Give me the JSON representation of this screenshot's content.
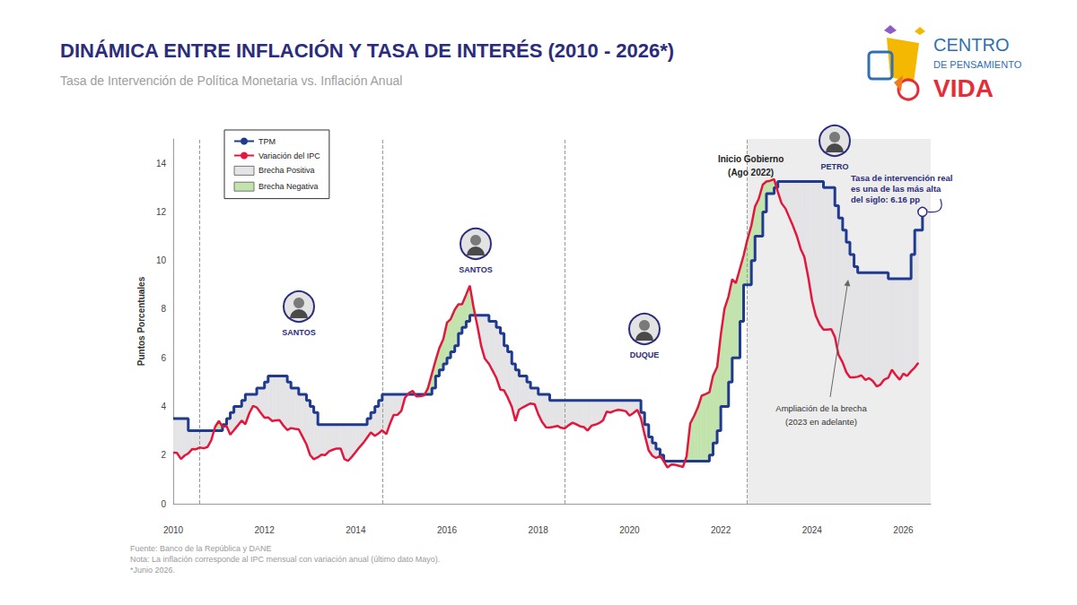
{
  "chart_data": {
    "type": "line",
    "title": "DINÁMICA ENTRE INFLACIÓN Y TASA DE INTERÉS (2010 - 2026*)",
    "subtitle": "Tasa de Intervención de Política Monetaria vs. Inflación Anual",
    "y_label": "Puntos Porcentuales",
    "x": [
      2010,
      2010.08,
      2010.17,
      2010.25,
      2010.33,
      2010.42,
      2010.5,
      2010.58,
      2010.67,
      2010.75,
      2010.83,
      2010.92,
      2011,
      2011.08,
      2011.17,
      2011.25,
      2011.33,
      2011.42,
      2011.5,
      2011.58,
      2011.67,
      2011.75,
      2011.83,
      2011.92,
      2012,
      2012.08,
      2012.17,
      2012.25,
      2012.33,
      2012.42,
      2012.5,
      2012.58,
      2012.67,
      2012.75,
      2012.83,
      2012.92,
      2013,
      2013.08,
      2013.17,
      2013.25,
      2013.33,
      2013.42,
      2013.5,
      2013.58,
      2013.67,
      2013.75,
      2013.83,
      2013.92,
      2014,
      2014.08,
      2014.17,
      2014.25,
      2014.33,
      2014.42,
      2014.5,
      2014.58,
      2014.67,
      2014.75,
      2014.83,
      2014.92,
      2015,
      2015.08,
      2015.17,
      2015.25,
      2015.33,
      2015.42,
      2015.5,
      2015.58,
      2015.67,
      2015.75,
      2015.83,
      2015.92,
      2016,
      2016.08,
      2016.17,
      2016.25,
      2016.33,
      2016.42,
      2016.5,
      2016.58,
      2016.67,
      2016.75,
      2016.83,
      2016.92,
      2017,
      2017.08,
      2017.17,
      2017.25,
      2017.33,
      2017.42,
      2017.5,
      2017.58,
      2017.67,
      2017.75,
      2017.83,
      2017.92,
      2018,
      2018.08,
      2018.17,
      2018.25,
      2018.33,
      2018.42,
      2018.5,
      2018.58,
      2018.67,
      2018.75,
      2018.83,
      2018.92,
      2019,
      2019.08,
      2019.17,
      2019.25,
      2019.33,
      2019.42,
      2019.5,
      2019.58,
      2019.67,
      2019.75,
      2019.83,
      2019.92,
      2020,
      2020.08,
      2020.17,
      2020.25,
      2020.33,
      2020.42,
      2020.5,
      2020.58,
      2020.67,
      2020.75,
      2020.83,
      2020.92,
      2021,
      2021.08,
      2021.17,
      2021.25,
      2021.33,
      2021.42,
      2021.5,
      2021.58,
      2021.67,
      2021.75,
      2021.83,
      2021.92,
      2022,
      2022.08,
      2022.17,
      2022.25,
      2022.33,
      2022.42,
      2022.5,
      2022.58,
      2022.67,
      2022.75,
      2022.83,
      2022.92,
      2023,
      2023.08,
      2023.17,
      2023.25,
      2023.33,
      2023.42,
      2023.5,
      2023.58,
      2023.67,
      2023.75,
      2023.83,
      2023.92,
      2024,
      2024.08,
      2024.17,
      2024.25,
      2024.33,
      2024.42,
      2024.5,
      2024.58,
      2024.67,
      2024.75,
      2024.83,
      2024.92,
      2025,
      2025.08,
      2025.17,
      2025.25,
      2025.33,
      2025.42,
      2025.5,
      2025.58,
      2025.67,
      2025.75,
      2025.83,
      2025.92,
      2026,
      2026.08,
      2026.17,
      2026.25,
      2026.33,
      2026.42
    ],
    "series": [
      {
        "name": "TPM",
        "color": "#1f3a8f",
        "line_style": "step",
        "values": [
          3.5,
          3.5,
          3.5,
          3.5,
          3,
          3,
          3,
          3,
          3,
          3,
          3,
          3,
          3,
          3.25,
          3.5,
          3.75,
          4,
          4,
          4.25,
          4.5,
          4.5,
          4.5,
          4.75,
          4.75,
          5,
          5.25,
          5.25,
          5.25,
          5.25,
          5.25,
          5,
          4.75,
          4.75,
          4.5,
          4.5,
          4.25,
          4,
          3.75,
          3.25,
          3.25,
          3.25,
          3.25,
          3.25,
          3.25,
          3.25,
          3.25,
          3.25,
          3.25,
          3.25,
          3.25,
          3.25,
          3.5,
          3.75,
          4,
          4.25,
          4.5,
          4.5,
          4.5,
          4.5,
          4.5,
          4.5,
          4.5,
          4.5,
          4.5,
          4.5,
          4.5,
          4.5,
          4.5,
          4.75,
          5.25,
          5.5,
          5.75,
          6,
          6.25,
          6.5,
          7,
          7.25,
          7.5,
          7.75,
          7.75,
          7.75,
          7.75,
          7.75,
          7.5,
          7.5,
          7.25,
          7,
          6.5,
          6.25,
          5.75,
          5.5,
          5.25,
          5.25,
          5,
          4.75,
          4.75,
          4.5,
          4.5,
          4.5,
          4.25,
          4.25,
          4.25,
          4.25,
          4.25,
          4.25,
          4.25,
          4.25,
          4.25,
          4.25,
          4.25,
          4.25,
          4.25,
          4.25,
          4.25,
          4.25,
          4.25,
          4.25,
          4.25,
          4.25,
          4.25,
          4.25,
          4.25,
          4.25,
          3.75,
          3.25,
          2.75,
          2.5,
          2.25,
          2,
          1.75,
          1.75,
          1.75,
          1.75,
          1.75,
          1.75,
          1.75,
          1.75,
          1.75,
          1.75,
          1.75,
          1.75,
          2,
          2.5,
          3,
          4,
          4,
          5,
          6,
          6,
          7.5,
          9,
          9,
          10,
          11,
          11,
          12,
          12.75,
          12.75,
          13,
          13.25,
          13.25,
          13.25,
          13.25,
          13.25,
          13.25,
          13.25,
          13.25,
          13.25,
          13.25,
          13.25,
          13.25,
          13,
          13,
          13,
          12.25,
          11.75,
          11.25,
          10.75,
          10.25,
          9.75,
          9.5,
          9.5,
          9.5,
          9.5,
          9.5,
          9.5,
          9.5,
          9.5,
          9.25,
          9.25,
          9.25,
          9.25,
          9.25,
          9.25,
          10.25,
          11.25,
          11.25,
          12
        ]
      },
      {
        "name": "Variación del IPC",
        "color": "#e3173e",
        "line_style": "solid",
        "values": [
          2.1,
          2.09,
          1.84,
          1.98,
          2.07,
          2.25,
          2.24,
          2.31,
          2.28,
          2.33,
          2.59,
          3.17,
          3.4,
          3.17,
          3.19,
          2.84,
          3.02,
          3.23,
          3.42,
          3.27,
          3.73,
          4.02,
          3.96,
          3.73,
          3.54,
          3.55,
          3.4,
          3.43,
          3.44,
          3.2,
          3.03,
          3.11,
          3.08,
          3.06,
          2.77,
          2.44,
          2,
          1.83,
          1.91,
          2.02,
          2,
          2.16,
          2.22,
          2.27,
          2.27,
          1.84,
          1.76,
          1.94,
          2.13,
          2.32,
          2.51,
          2.72,
          2.93,
          2.79,
          2.89,
          3.02,
          2.86,
          3.29,
          3.65,
          3.66,
          3.82,
          4.36,
          4.56,
          4.64,
          4.41,
          4.42,
          4.46,
          4.74,
          5.35,
          5.89,
          6.39,
          6.77,
          7.45,
          7.59,
          7.98,
          8.2,
          8.2,
          8.6,
          8.97,
          8.1,
          7.27,
          6.48,
          5.96,
          5.75,
          5.47,
          5.18,
          4.69,
          4.66,
          4.37,
          3.99,
          3.4,
          3.87,
          3.97,
          4.05,
          4.12,
          4.09,
          3.68,
          3.37,
          3.14,
          3.13,
          3.16,
          3.2,
          3.12,
          3.1,
          3.23,
          3.33,
          3.27,
          3.18,
          3.15,
          3.01,
          3.21,
          3.25,
          3.31,
          3.43,
          3.79,
          3.75,
          3.82,
          3.86,
          3.84,
          3.8,
          3.62,
          3.72,
          3.86,
          3.51,
          2.85,
          2.19,
          1.97,
          1.88,
          1.97,
          1.75,
          1.49,
          1.61,
          1.6,
          1.56,
          1.51,
          1.95,
          3.3,
          3.63,
          3.97,
          4.44,
          4.51,
          4.58,
          5.26,
          5.62,
          6.94,
          8.01,
          8.53,
          9.23,
          9.07,
          9.67,
          10.21,
          10.84,
          11.44,
          12.22,
          12.53,
          13.12,
          13.25,
          13.28,
          13.34,
          12.82,
          12.36,
          12.13,
          11.78,
          11.43,
          10.99,
          10.48,
          10.15,
          9.28,
          8.35,
          7.74,
          7.36,
          7.16,
          7.16,
          7.18,
          6.86,
          6.12,
          5.81,
          5.41,
          5.2,
          5.2,
          5.22,
          5.28,
          5.09,
          5.16,
          5.05,
          4.82,
          4.9,
          5.1,
          5.18,
          5.51,
          5.3,
          5.1,
          5.35,
          5.25,
          5.45,
          5.6,
          5.8,
          null
        ]
      }
    ],
    "gap": {
      "upper": "TPM",
      "lower": "Variación del IPC",
      "positive": {
        "name": "Brecha Positiva",
        "color": "#e4e4e6"
      },
      "negative": {
        "name": "Brecha Negativa",
        "color": "#c3e3ad"
      }
    },
    "xlim": [
      2010,
      2026.6
    ],
    "xticks": [
      2010,
      2012,
      2014,
      2016,
      2018,
      2020,
      2022,
      2024,
      2026
    ],
    "ylim": [
      0,
      15
    ],
    "yticks": [
      0,
      2,
      4,
      6,
      8,
      10,
      12,
      14
    ],
    "grid": false,
    "legend": "upper left",
    "governments": [
      {
        "president": "SANTOS",
        "start": 2010.58
      },
      {
        "president": "SANTOS",
        "start": 2014.58
      },
      {
        "president": "DUQUE",
        "start": 2018.58
      },
      {
        "president": "PETRO",
        "start": 2022.58
      }
    ],
    "annotations": {
      "government_start": [
        "Inicio Gobierno",
        "(Ago 2022)"
      ],
      "real_rate": [
        "Tasa de intervención real",
        "es una de las más alta",
        "del siglo: 6.16 pp"
      ],
      "gap_widening": [
        "Ampliación de la brecha",
        "(2023 en adelante)"
      ]
    },
    "logo": [
      "CENTRO",
      "DE PENSAMIENTO",
      "VIDA"
    ],
    "source": "Fuente: Banco de la República y DANE",
    "note": "Nota: La inflación corresponde al IPC mensual con variación anual (último dato Mayo).",
    "footnote": "*Junio 2026."
  }
}
